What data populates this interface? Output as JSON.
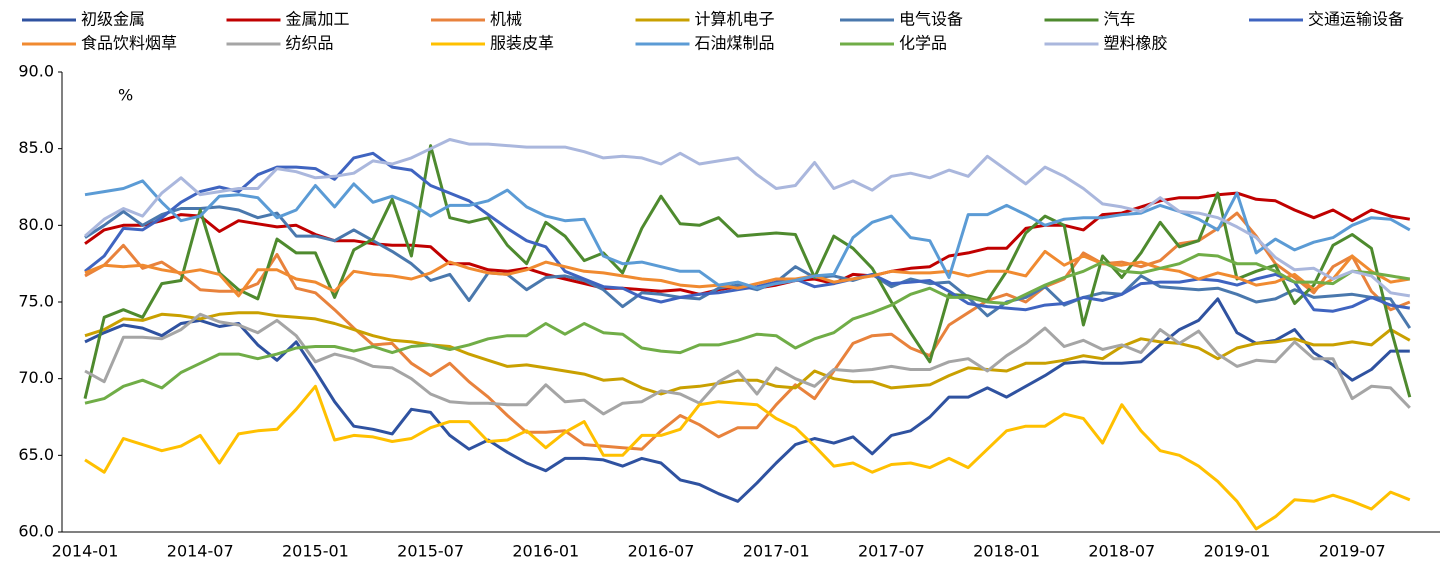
{
  "chart_data": {
    "type": "line",
    "y_label": "%",
    "legend": "top",
    "categories": [
      "2014-01",
      null,
      null,
      null,
      null,
      null,
      "2014-07",
      null,
      null,
      null,
      null,
      null,
      "2015-01",
      null,
      null,
      null,
      null,
      null,
      "2015-07",
      null,
      null,
      null,
      null,
      null,
      "2016-01",
      null,
      null,
      null,
      null,
      null,
      "2016-07",
      null,
      null,
      null,
      null,
      null,
      "2017-01",
      null,
      null,
      null,
      null,
      null,
      "2017-07",
      null,
      null,
      null,
      null,
      null,
      "2018-01",
      null,
      null,
      null,
      null,
      null,
      "2018-07",
      null,
      null,
      null,
      null,
      null,
      "2019-01",
      null,
      null,
      null,
      null,
      null,
      "2019-07",
      null,
      null,
      null
    ],
    "ylim": [
      60,
      90
    ],
    "yticks": [
      {
        "value": 60,
        "label": "60.0"
      },
      {
        "value": 65,
        "label": "65.0"
      },
      {
        "value": 70,
        "label": "70.0"
      },
      {
        "value": 75,
        "label": "75.0"
      },
      {
        "value": 80,
        "label": "80.0"
      },
      {
        "value": 85,
        "label": "85.0"
      },
      {
        "value": 90,
        "label": "90.0"
      }
    ],
    "series": [
      {
        "name": "初级金属",
        "color": "#2f52a0",
        "values": [
          72.4,
          73.0,
          73.5,
          73.3,
          72.8,
          73.6,
          73.8,
          73.4,
          73.6,
          72.2,
          71.2,
          72.4,
          70.5,
          68.5,
          66.9,
          66.7,
          66.4,
          68.0,
          67.8,
          66.3,
          65.4,
          66.0,
          65.2,
          64.5,
          64.0,
          64.8,
          64.8,
          64.7,
          64.3,
          64.8,
          64.5,
          63.4,
          63.1,
          62.5,
          62.0,
          63.2,
          64.5,
          65.7,
          66.1,
          65.8,
          66.2,
          65.1,
          66.3,
          66.6,
          67.5,
          68.8,
          68.8,
          69.4,
          68.8,
          69.5,
          70.2,
          71.0,
          71.1,
          71.0,
          71.0,
          71.1,
          72.2,
          73.2,
          73.8,
          75.2,
          73.0,
          72.3,
          72.5,
          73.2,
          71.7,
          70.9,
          69.9,
          70.6,
          71.8,
          71.8
        ]
      },
      {
        "name": "金属加工",
        "color": "#c00000",
        "values": [
          78.8,
          79.7,
          80.0,
          80.0,
          80.3,
          80.7,
          80.6,
          79.6,
          80.3,
          80.1,
          79.9,
          80.0,
          79.4,
          79.0,
          79.0,
          78.8,
          78.7,
          78.7,
          78.6,
          77.5,
          77.5,
          77.1,
          77.0,
          77.2,
          76.8,
          76.5,
          76.2,
          75.9,
          75.9,
          75.8,
          75.7,
          75.8,
          75.5,
          75.8,
          76.0,
          75.9,
          76.1,
          76.4,
          76.5,
          76.2,
          76.8,
          76.7,
          77.0,
          77.2,
          77.3,
          78.0,
          78.2,
          78.5,
          78.5,
          79.8,
          80.0,
          80.0,
          79.7,
          80.7,
          80.8,
          81.2,
          81.6,
          81.8,
          81.8,
          82.0,
          82.1,
          81.7,
          81.6,
          81.0,
          80.5,
          81.0,
          80.3,
          81.0,
          80.6,
          80.4
        ]
      },
      {
        "name": "机械",
        "color": "#e8823c",
        "values": [
          76.7,
          77.4,
          78.7,
          77.2,
          77.6,
          76.8,
          75.8,
          75.7,
          75.7,
          76.2,
          78.1,
          75.9,
          75.6,
          74.5,
          73.3,
          72.2,
          72.3,
          71.0,
          70.2,
          71.0,
          69.8,
          68.8,
          67.6,
          66.5,
          66.5,
          66.6,
          65.7,
          65.6,
          65.5,
          65.4,
          66.6,
          67.6,
          67.0,
          66.2,
          66.8,
          66.8,
          68.3,
          69.6,
          68.7,
          70.5,
          72.3,
          72.8,
          72.9,
          72.0,
          71.5,
          73.5,
          74.3,
          75.1,
          75.5,
          75.0,
          76.0,
          76.5,
          78.2,
          77.5,
          77.6,
          77.3,
          77.7,
          78.8,
          79.0,
          79.8,
          80.8,
          79.3,
          77.5,
          76.6,
          75.6,
          77.3,
          78.0,
          75.7,
          74.5,
          75.0
        ]
      },
      {
        "name": "计算机电子",
        "color": "#c9a000",
        "values": [
          72.8,
          73.2,
          73.9,
          73.8,
          74.2,
          74.1,
          73.9,
          74.2,
          74.3,
          74.3,
          74.1,
          74.0,
          73.9,
          73.6,
          73.2,
          72.8,
          72.5,
          72.4,
          72.2,
          72.1,
          71.6,
          71.2,
          70.8,
          70.9,
          70.7,
          70.5,
          70.3,
          69.9,
          70.0,
          69.4,
          69.0,
          69.4,
          69.5,
          69.7,
          69.9,
          69.9,
          69.5,
          69.4,
          70.5,
          70.0,
          69.8,
          69.8,
          69.4,
          69.5,
          69.6,
          70.2,
          70.7,
          70.6,
          70.5,
          71.0,
          71.0,
          71.2,
          71.5,
          71.3,
          72.1,
          72.6,
          72.4,
          72.3,
          72.0,
          71.3,
          72.0,
          72.3,
          72.4,
          72.6,
          72.2,
          72.2,
          72.4,
          72.2,
          73.2,
          72.5
        ]
      },
      {
        "name": "电气设备",
        "color": "#4a78ad",
        "values": [
          79.2,
          80.0,
          80.9,
          80.0,
          80.7,
          81.1,
          81.1,
          81.2,
          81.0,
          80.5,
          80.8,
          79.3,
          79.3,
          79.0,
          79.7,
          79.0,
          78.3,
          77.5,
          76.4,
          76.8,
          75.1,
          76.9,
          76.8,
          75.8,
          76.6,
          76.7,
          76.4,
          75.8,
          74.7,
          75.6,
          75.5,
          75.3,
          75.2,
          75.9,
          76.1,
          75.8,
          76.3,
          77.3,
          76.6,
          76.7,
          76.4,
          76.8,
          76.0,
          76.5,
          76.2,
          76.3,
          75.3,
          74.1,
          75.0,
          75.3,
          76.0,
          74.8,
          75.3,
          75.6,
          75.5,
          76.7,
          76.0,
          75.9,
          75.8,
          75.9,
          75.5,
          75.0,
          75.2,
          75.8,
          75.3,
          75.4,
          75.5,
          75.3,
          75.2,
          73.3
        ]
      },
      {
        "name": "汽车",
        "color": "#4e8a2e",
        "values": [
          68.7,
          74.0,
          74.5,
          74.0,
          76.2,
          76.4,
          81.0,
          76.9,
          75.8,
          75.2,
          79.1,
          78.2,
          78.2,
          75.3,
          78.4,
          79.1,
          81.7,
          78.0,
          85.2,
          80.5,
          80.2,
          80.5,
          78.7,
          77.5,
          80.2,
          79.3,
          77.7,
          78.2,
          76.9,
          79.8,
          81.9,
          80.1,
          80.0,
          80.5,
          79.3,
          79.4,
          79.5,
          79.4,
          76.6,
          79.3,
          78.5,
          77.2,
          75.0,
          73.0,
          71.1,
          75.5,
          75.4,
          75.1,
          77.0,
          79.5,
          80.6,
          80.0,
          73.5,
          78.0,
          76.6,
          78.2,
          80.2,
          78.6,
          79.0,
          82.1,
          76.5,
          77.0,
          77.4,
          74.9,
          76.1,
          78.7,
          79.4,
          78.5,
          73.3,
          68.8
        ]
      },
      {
        "name": "交通运输设备",
        "color": "#3f64c0",
        "values": [
          77.0,
          78.0,
          79.8,
          79.7,
          80.5,
          81.5,
          82.2,
          82.5,
          82.2,
          83.3,
          83.8,
          83.8,
          83.7,
          83.0,
          84.4,
          84.7,
          83.8,
          83.6,
          82.6,
          82.1,
          81.6,
          80.7,
          79.8,
          79.0,
          78.6,
          77.0,
          76.5,
          76.0,
          75.9,
          75.3,
          75.0,
          75.3,
          75.5,
          75.6,
          75.8,
          76.0,
          76.3,
          76.5,
          76.0,
          76.2,
          76.5,
          76.8,
          76.2,
          76.3,
          76.4,
          75.7,
          74.9,
          74.7,
          74.6,
          74.5,
          74.8,
          74.9,
          75.3,
          75.1,
          75.5,
          76.2,
          76.3,
          76.3,
          76.5,
          76.4,
          76.1,
          76.5,
          76.8,
          76.3,
          74.5,
          74.4,
          74.7,
          75.3,
          74.8,
          74.6
        ]
      },
      {
        "name": "食品饮料烟草",
        "color": "#f08a30",
        "values": [
          76.9,
          77.4,
          77.3,
          77.4,
          77.1,
          76.9,
          77.1,
          76.8,
          75.4,
          77.1,
          77.1,
          76.5,
          76.3,
          75.7,
          77.0,
          76.8,
          76.7,
          76.5,
          76.9,
          77.6,
          77.2,
          76.9,
          76.8,
          77.1,
          77.6,
          77.3,
          77.0,
          76.9,
          76.7,
          76.5,
          76.4,
          76.1,
          76.0,
          76.1,
          75.9,
          76.2,
          76.5,
          76.5,
          76.7,
          76.3,
          76.5,
          76.7,
          77.0,
          76.9,
          76.9,
          77.0,
          76.7,
          77.0,
          77.0,
          76.7,
          78.3,
          77.4,
          78.0,
          77.5,
          77.4,
          77.6,
          77.2,
          77.0,
          76.5,
          76.9,
          76.6,
          76.1,
          76.3,
          76.8,
          75.8,
          76.5,
          78.0,
          77.0,
          76.3,
          76.5
        ]
      },
      {
        "name": "纺织品",
        "color": "#a5a5a5",
        "values": [
          70.5,
          69.8,
          72.7,
          72.7,
          72.6,
          73.2,
          74.2,
          73.7,
          73.5,
          73.0,
          73.8,
          72.8,
          71.1,
          71.6,
          71.3,
          70.8,
          70.7,
          70.0,
          69.0,
          68.5,
          68.4,
          68.4,
          68.3,
          68.3,
          69.6,
          68.5,
          68.6,
          67.7,
          68.4,
          68.5,
          69.2,
          69.0,
          68.4,
          69.8,
          70.5,
          69.0,
          70.7,
          70.0,
          69.5,
          70.6,
          70.5,
          70.6,
          70.8,
          70.6,
          70.6,
          71.1,
          71.3,
          70.5,
          71.5,
          72.3,
          73.3,
          72.1,
          72.5,
          71.9,
          72.2,
          71.7,
          73.2,
          72.3,
          73.1,
          71.6,
          70.8,
          71.2,
          71.1,
          72.4,
          71.3,
          71.3,
          68.7,
          69.5,
          69.4,
          68.1
        ]
      },
      {
        "name": "服装皮革",
        "color": "#ffc000",
        "values": [
          64.7,
          63.9,
          66.1,
          65.7,
          65.3,
          65.6,
          66.3,
          64.5,
          66.4,
          66.6,
          66.7,
          68.0,
          69.5,
          66.0,
          66.3,
          66.2,
          65.9,
          66.1,
          66.8,
          67.2,
          67.2,
          65.9,
          66.0,
          66.6,
          65.5,
          66.5,
          67.2,
          65.0,
          65.0,
          66.3,
          66.3,
          66.7,
          68.3,
          68.5,
          68.4,
          68.3,
          67.4,
          66.8,
          65.6,
          64.3,
          64.5,
          63.9,
          64.4,
          64.5,
          64.2,
          64.8,
          64.2,
          65.4,
          66.6,
          66.9,
          66.9,
          67.7,
          67.4,
          65.8,
          68.3,
          66.6,
          65.3,
          65.0,
          64.3,
          63.3,
          62.0,
          60.2,
          61.0,
          62.1,
          62.0,
          62.4,
          62.0,
          61.5,
          62.6,
          62.1
        ]
      },
      {
        "name": "石油煤制品",
        "color": "#5b9bd5",
        "values": [
          82.0,
          82.2,
          82.4,
          82.9,
          81.5,
          80.3,
          80.6,
          81.9,
          82.0,
          81.8,
          80.5,
          81.0,
          82.6,
          81.2,
          82.7,
          81.5,
          81.9,
          81.4,
          80.6,
          81.3,
          81.3,
          81.6,
          82.3,
          81.2,
          80.6,
          80.3,
          80.4,
          78.0,
          77.5,
          77.6,
          77.3,
          77.0,
          77.0,
          76.1,
          76.3,
          75.9,
          76.2,
          76.4,
          76.7,
          76.8,
          79.2,
          80.2,
          80.6,
          79.2,
          79.0,
          76.6,
          80.7,
          80.7,
          81.3,
          80.7,
          80.0,
          80.4,
          80.5,
          80.5,
          80.7,
          80.8,
          81.3,
          80.9,
          80.4,
          79.7,
          82.1,
          78.2,
          79.1,
          78.4,
          78.9,
          79.2,
          80.0,
          80.5,
          80.4,
          79.7
        ]
      },
      {
        "name": "化学品",
        "color": "#70ad47",
        "values": [
          68.4,
          68.7,
          69.5,
          69.9,
          69.4,
          70.4,
          71.0,
          71.6,
          71.6,
          71.3,
          71.6,
          72.0,
          72.1,
          72.1,
          71.8,
          72.1,
          71.7,
          72.1,
          72.2,
          71.9,
          72.2,
          72.6,
          72.8,
          72.8,
          73.6,
          72.9,
          73.6,
          73.0,
          72.9,
          72.0,
          71.8,
          71.7,
          72.2,
          72.2,
          72.5,
          72.9,
          72.8,
          72.0,
          72.6,
          73.0,
          73.9,
          74.3,
          74.8,
          75.5,
          75.9,
          75.3,
          75.3,
          75.0,
          74.9,
          75.5,
          76.1,
          76.6,
          77.0,
          77.6,
          77.0,
          76.9,
          77.2,
          77.5,
          78.1,
          78.0,
          77.5,
          77.5,
          77.0,
          76.3,
          76.3,
          76.2,
          77.0,
          76.9,
          76.7,
          76.5
        ]
      },
      {
        "name": "塑料橡胶",
        "color": "#aab7dd",
        "values": [
          79.3,
          80.4,
          81.1,
          80.6,
          82.1,
          83.1,
          82.0,
          82.2,
          82.4,
          82.4,
          83.7,
          83.5,
          83.1,
          83.2,
          83.4,
          84.2,
          84.0,
          84.4,
          85.0,
          85.6,
          85.3,
          85.3,
          85.2,
          85.1,
          85.1,
          85.1,
          84.8,
          84.4,
          84.5,
          84.4,
          84.0,
          84.7,
          84.0,
          84.2,
          84.4,
          83.3,
          82.4,
          82.6,
          84.1,
          82.4,
          82.9,
          82.3,
          83.2,
          83.4,
          83.1,
          83.6,
          83.2,
          84.5,
          83.6,
          82.7,
          83.8,
          83.2,
          82.4,
          81.4,
          81.2,
          80.9,
          81.8,
          80.9,
          80.8,
          80.5,
          79.9,
          79.2,
          77.9,
          77.1,
          77.2,
          76.5,
          77.0,
          76.7,
          75.6,
          75.4
        ]
      }
    ]
  }
}
